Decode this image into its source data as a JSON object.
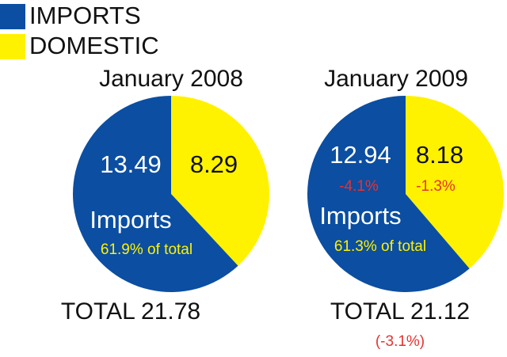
{
  "legend": {
    "items": [
      {
        "name": "IMPORTS",
        "color": "#0b4ea2"
      },
      {
        "name": "DOMESTIC",
        "color": "#fff200"
      }
    ]
  },
  "chart_data": [
    {
      "type": "pie",
      "title": "January 2008",
      "values": [
        13.49,
        8.29
      ],
      "share_label": "Imports",
      "share_value": "61.9% of total",
      "total_label": "TOTAL 21.78"
    },
    {
      "type": "pie",
      "title": "January 2009",
      "values": [
        12.94,
        8.18
      ],
      "change_labels": [
        "-4.1%",
        "-1.3%"
      ],
      "share_label": "Imports",
      "share_value": "61.3% of total",
      "total_label": "TOTAL 21.12",
      "total_change": "(-3.1%)"
    }
  ]
}
